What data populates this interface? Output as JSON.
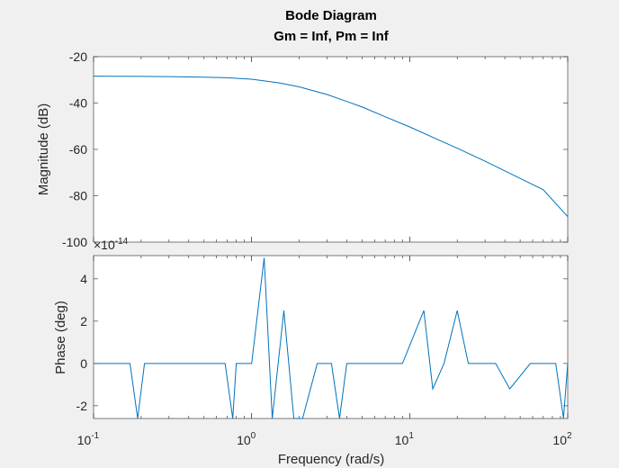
{
  "figure": {
    "title": "Bode Diagram",
    "subtitle": "Gm = Inf,  Pm = Inf",
    "background": "#f0f0f0",
    "axes_color": "#262626",
    "line_color": "#0072bd"
  },
  "chart_data": [
    {
      "type": "line",
      "name": "magnitude",
      "title": "Bode Diagram",
      "subtitle": "Gm = Inf,  Pm = Inf",
      "xlabel": "",
      "ylabel": "Magnitude (dB)",
      "xscale": "log",
      "xlim": [
        0.1,
        100
      ],
      "ylim": [
        -100,
        -20
      ],
      "yticks": [
        -100,
        -80,
        -60,
        -40,
        -20
      ],
      "ytick_labels": [
        "-100",
        "-80",
        "-60",
        "-40",
        "-20"
      ],
      "grid": false,
      "series": [
        {
          "x": [
            0.1,
            0.2,
            0.3,
            0.5,
            0.7,
            1,
            1.5,
            2,
            3,
            4,
            5,
            7,
            10,
            15,
            20,
            30,
            50,
            70,
            100
          ],
          "y": [
            -28.4,
            -28.5,
            -28.6,
            -28.8,
            -29.1,
            -29.7,
            -31.3,
            -33.0,
            -36.3,
            -39.3,
            -41.7,
            -45.9,
            -50.3,
            -55.7,
            -59.5,
            -65.1,
            -72.5,
            -77.4,
            -89.0
          ]
        }
      ]
    },
    {
      "type": "line",
      "name": "phase",
      "xlabel": "Frequency  (rad/s)",
      "ylabel": "Phase (deg)",
      "xscale": "log",
      "xlim": [
        0.1,
        100
      ],
      "xticks": [
        0.1,
        1,
        10,
        100
      ],
      "xtick_labels": [
        {
          "base": "10",
          "exp": "-1"
        },
        {
          "base": "10",
          "exp": "0"
        },
        {
          "base": "10",
          "exp": "1"
        },
        {
          "base": "10",
          "exp": "2"
        }
      ],
      "ylim": [
        -2.6,
        5.1
      ],
      "yticks": [
        -2,
        0,
        2,
        4
      ],
      "ytick_labels": [
        "-2",
        "0",
        "2",
        "4"
      ],
      "y_multiplier": {
        "base": "×10",
        "exp": "-14"
      },
      "grid": false,
      "series": [
        {
          "x": [
            0.1,
            0.17,
            0.19,
            0.21,
            0.6,
            0.68,
            0.76,
            0.8,
            0.89,
            1.0,
            1.2,
            1.35,
            1.6,
            1.85,
            2.1,
            2.6,
            3.2,
            3.6,
            4.0,
            9.0,
            12.3,
            14.0,
            16.5,
            20.0,
            23.5,
            27.5,
            35.0,
            43.0,
            58.0,
            84.0,
            94.0,
            100.0
          ],
          "y": [
            0,
            0,
            -2.6,
            0,
            0,
            0,
            -2.6,
            0,
            0,
            0,
            5.0,
            -2.6,
            2.5,
            -2.6,
            -2.6,
            0,
            0,
            -2.6,
            0,
            0,
            2.5,
            -1.2,
            0,
            2.5,
            0,
            0,
            0,
            -1.2,
            0,
            0,
            -2.6,
            0
          ]
        }
      ]
    }
  ]
}
